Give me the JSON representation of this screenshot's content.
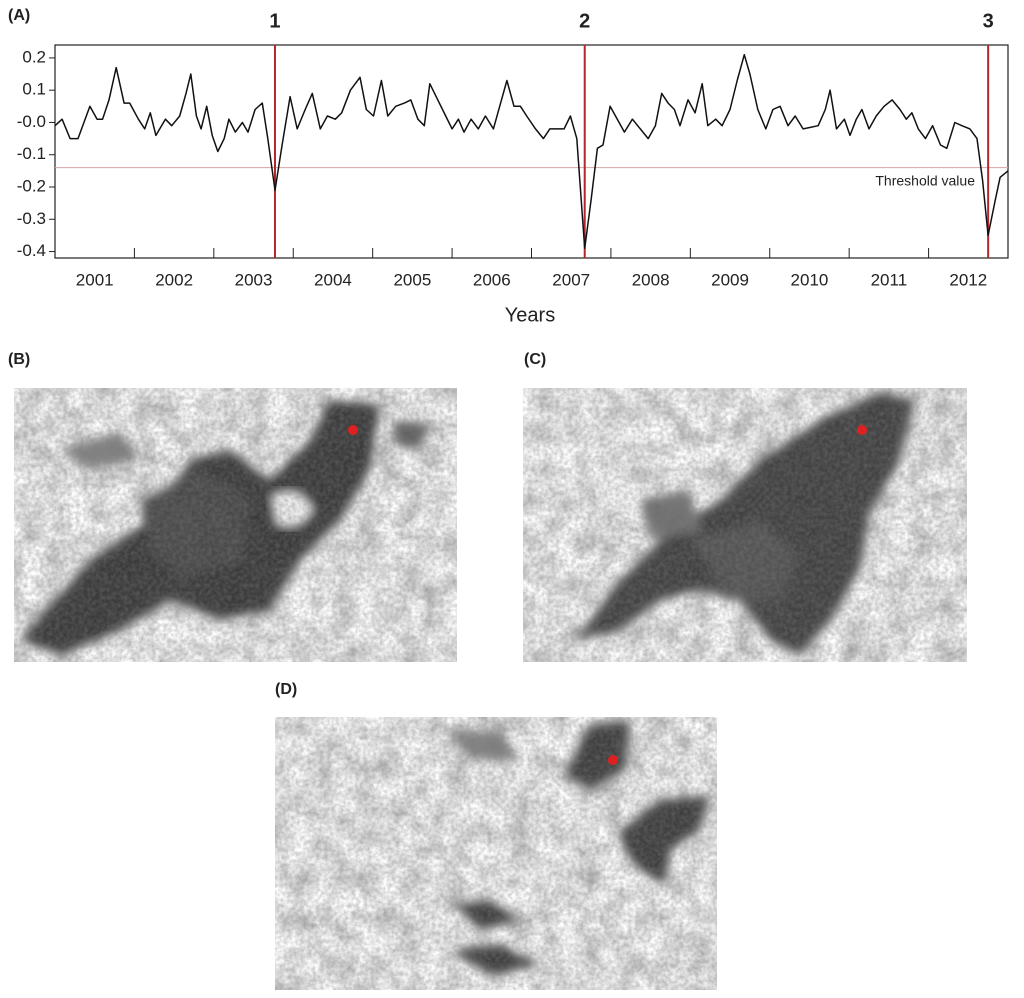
{
  "chart_data": {
    "type": "line",
    "panel_label": "(A)",
    "x_label": "Years",
    "xlim": [
      2001,
      2013
    ],
    "ylim": [
      -0.42,
      0.24
    ],
    "xticks": [
      2002,
      2003,
      2004,
      2005,
      2006,
      2007,
      2008,
      2009,
      2010,
      2011,
      2012
    ],
    "year_labels": [
      {
        "value": 2001.5,
        "label": "2001"
      },
      {
        "value": 2002.5,
        "label": "2002"
      },
      {
        "value": 2003.5,
        "label": "2003"
      },
      {
        "value": 2004.5,
        "label": "2004"
      },
      {
        "value": 2005.5,
        "label": "2005"
      },
      {
        "value": 2006.5,
        "label": "2006"
      },
      {
        "value": 2007.5,
        "label": "2007"
      },
      {
        "value": 2008.5,
        "label": "2008"
      },
      {
        "value": 2009.5,
        "label": "2009"
      },
      {
        "value": 2010.5,
        "label": "2010"
      },
      {
        "value": 2011.5,
        "label": "2011"
      },
      {
        "value": 2012.5,
        "label": "2012"
      }
    ],
    "yticks": [
      0.2,
      0.1,
      {
        "value": 0,
        "label": "-0.0"
      },
      -0.1,
      -0.2,
      -0.3,
      -0.4
    ],
    "threshold": {
      "value": -0.14,
      "label": "Threshold value",
      "color": "#d9a3a3"
    },
    "events": [
      {
        "x": 2003.77,
        "label": "1"
      },
      {
        "x": 2007.67,
        "label": "2"
      },
      {
        "x": 2012.75,
        "label": "3"
      }
    ],
    "event_color": "#b3262b",
    "series": [
      {
        "color": "#111111",
        "x": [
          2001.0,
          2001.09,
          2001.19,
          2001.29,
          2001.44,
          2001.53,
          2001.6,
          2001.68,
          2001.77,
          2001.87,
          2001.94,
          2002.05,
          2002.13,
          2002.2,
          2002.27,
          2002.39,
          2002.47,
          2002.57,
          2002.65,
          2002.71,
          2002.78,
          2002.84,
          2002.91,
          2002.98,
          2003.05,
          2003.13,
          2003.19,
          2003.27,
          2003.36,
          2003.43,
          2003.52,
          2003.61,
          2003.68,
          2003.77,
          2003.86,
          2003.96,
          2004.05,
          2004.15,
          2004.24,
          2004.34,
          2004.43,
          2004.53,
          2004.61,
          2004.72,
          2004.84,
          2004.92,
          2005.01,
          2005.11,
          2005.19,
          2005.29,
          2005.4,
          2005.48,
          2005.57,
          2005.65,
          2005.72,
          2005.82,
          2005.92,
          2006.0,
          2006.08,
          2006.15,
          2006.24,
          2006.33,
          2006.42,
          2006.52,
          2006.6,
          2006.69,
          2006.78,
          2006.86,
          2006.94,
          2007.05,
          2007.15,
          2007.23,
          2007.32,
          2007.41,
          2007.49,
          2007.57,
          2007.67,
          2007.75,
          2007.83,
          2007.9,
          2007.99,
          2008.08,
          2008.17,
          2008.27,
          2008.37,
          2008.47,
          2008.56,
          2008.64,
          2008.72,
          2008.8,
          2008.87,
          2008.97,
          2009.06,
          2009.15,
          2009.22,
          2009.32,
          2009.4,
          2009.5,
          2009.59,
          2009.68,
          2009.75,
          2009.85,
          2009.95,
          2010.04,
          2010.13,
          2010.23,
          2010.32,
          2010.42,
          2010.61,
          2010.7,
          2010.76,
          2010.84,
          2010.94,
          2011.01,
          2011.09,
          2011.16,
          2011.25,
          2011.34,
          2011.44,
          2011.54,
          2011.64,
          2011.72,
          2011.79,
          2011.87,
          2011.96,
          2012.05,
          2012.15,
          2012.23,
          2012.33,
          2012.42,
          2012.52,
          2012.61,
          2012.68,
          2012.75,
          2012.84,
          2012.9,
          2013.0
        ],
        "values": [
          -0.01,
          0.01,
          -0.05,
          -0.05,
          0.05,
          0.01,
          0.01,
          0.07,
          0.17,
          0.06,
          0.06,
          0.01,
          -0.02,
          0.03,
          -0.04,
          0.01,
          -0.01,
          0.02,
          0.09,
          0.15,
          0.02,
          -0.02,
          0.05,
          -0.04,
          -0.09,
          -0.05,
          0.01,
          -0.03,
          0.0,
          -0.03,
          0.04,
          0.06,
          -0.05,
          -0.21,
          -0.07,
          0.08,
          -0.02,
          0.04,
          0.09,
          -0.02,
          0.02,
          0.01,
          0.03,
          0.1,
          0.14,
          0.04,
          0.02,
          0.13,
          0.02,
          0.05,
          0.06,
          0.07,
          0.01,
          -0.01,
          0.12,
          0.07,
          0.02,
          -0.02,
          0.01,
          -0.03,
          0.01,
          -0.02,
          0.02,
          -0.02,
          0.05,
          0.13,
          0.05,
          0.05,
          0.02,
          -0.02,
          -0.05,
          -0.02,
          -0.02,
          -0.02,
          0.02,
          -0.05,
          -0.39,
          -0.24,
          -0.08,
          -0.07,
          0.05,
          0.01,
          -0.03,
          0.01,
          -0.02,
          -0.05,
          -0.01,
          0.09,
          0.06,
          0.04,
          -0.01,
          0.07,
          0.03,
          0.12,
          -0.01,
          0.01,
          -0.01,
          0.04,
          0.13,
          0.21,
          0.15,
          0.04,
          -0.02,
          0.04,
          0.05,
          -0.01,
          0.02,
          -0.02,
          -0.01,
          0.04,
          0.1,
          -0.02,
          0.01,
          -0.04,
          0.01,
          0.04,
          -0.02,
          0.02,
          0.05,
          0.07,
          0.04,
          0.01,
          0.03,
          -0.02,
          -0.05,
          -0.01,
          -0.07,
          -0.08,
          0.0,
          -0.01,
          -0.02,
          -0.05,
          -0.18,
          -0.35,
          -0.24,
          -0.17,
          -0.15
        ]
      }
    ]
  },
  "panels": [
    {
      "label": "(B)"
    },
    {
      "label": "(C)"
    },
    {
      "label": "(D)"
    }
  ]
}
